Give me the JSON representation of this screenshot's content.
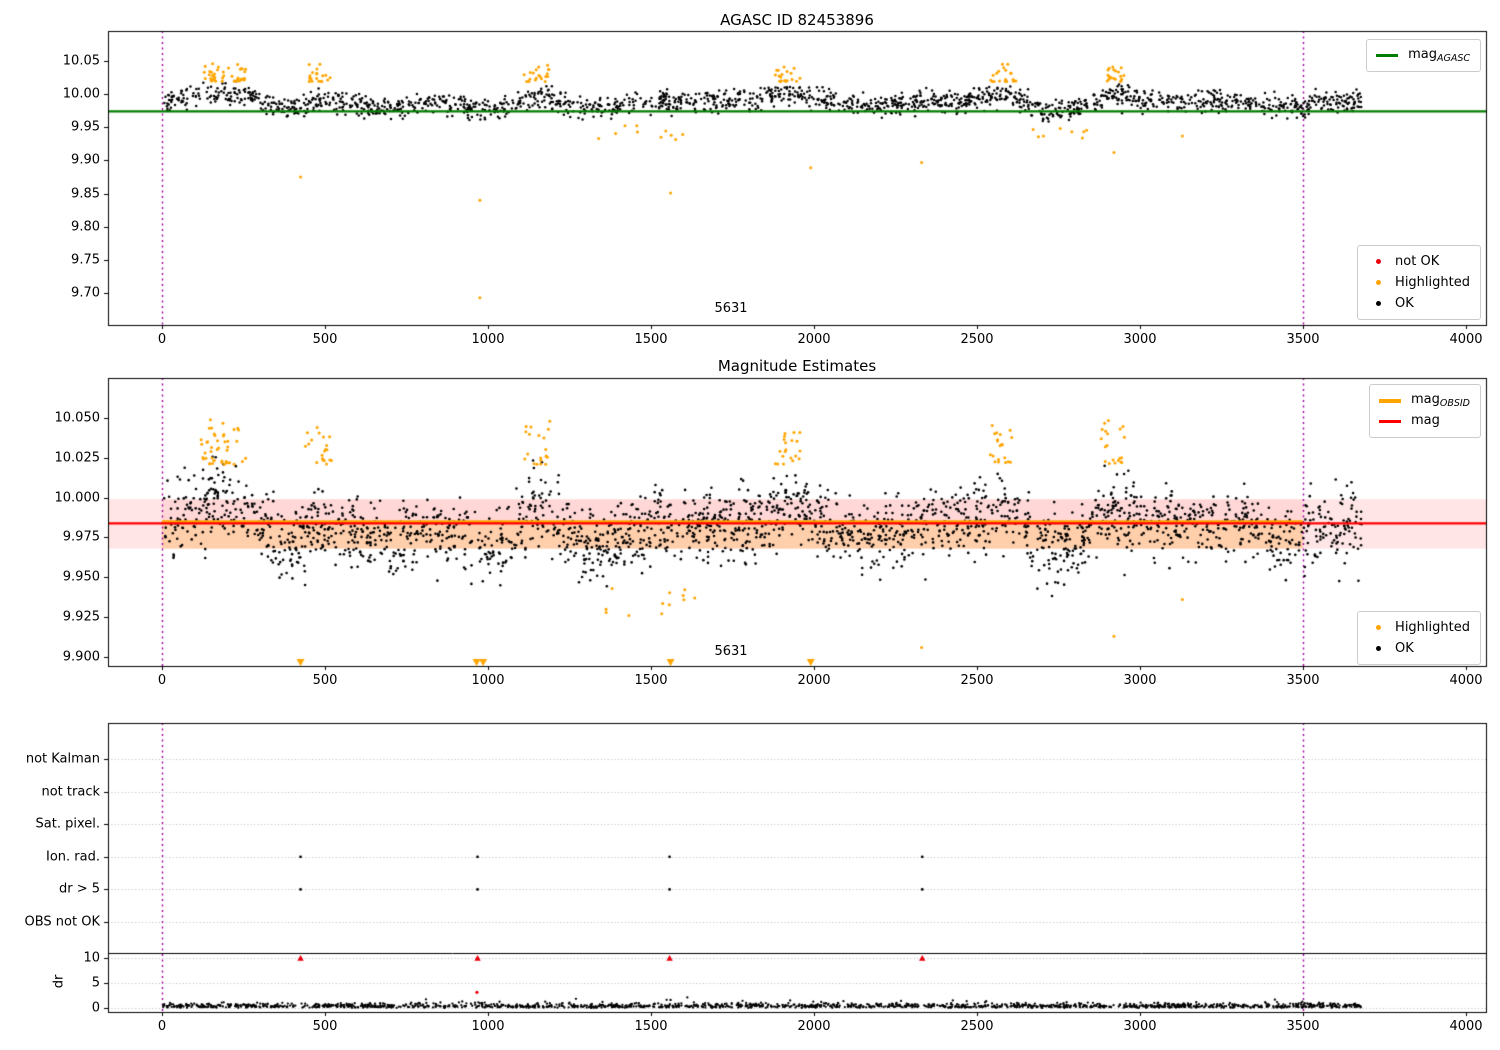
{
  "figure": {
    "background": "#ffffff"
  },
  "chart_data": [
    {
      "type": "scatter",
      "title": "AGASC ID 82453896",
      "xlim": [
        -170,
        4060
      ],
      "ylim": [
        9.652,
        10.092
      ],
      "x_tick_values": [
        0,
        500,
        1000,
        1500,
        2000,
        2500,
        3000,
        3500,
        4000
      ],
      "x_tick_labels": [
        "0",
        "500",
        "1000",
        "1500",
        "2000",
        "2500",
        "3000",
        "3500",
        "4000"
      ],
      "y_tick_values": [
        10.05,
        10.0,
        9.95,
        9.9,
        9.85,
        9.8,
        9.75,
        9.7
      ],
      "y_tick_labels": [
        "10.05",
        "10.00",
        "9.95",
        "9.90",
        "9.85",
        "9.80",
        "9.75",
        "9.70"
      ],
      "grid": false,
      "vlines": {
        "x": [
          0,
          3500
        ],
        "color": "#a100a1",
        "style": "dotted"
      },
      "agasc_line": {
        "label_main": "mag",
        "label_sub": "AGASC",
        "value": 9.974,
        "color": "#007d00"
      },
      "annotation": {
        "text": "5631",
        "x": 1745,
        "y": 9.676
      },
      "legend_points": {
        "position": "lower right",
        "items": [
          {
            "label": "not OK",
            "color": "#e8000b"
          },
          {
            "label": "Highlighted",
            "color": "#ffa500"
          },
          {
            "label": "OK",
            "color": "#000000"
          }
        ]
      },
      "ok_series": {
        "color": "#000000",
        "n": 1750,
        "x_range": [
          5,
          3680
        ],
        "y_mean": 9.9895,
        "y_std": 0.0082
      },
      "events": [
        {
          "c": 190,
          "w": 80,
          "a": 0.014
        },
        {
          "c": 480,
          "w": 50,
          "a": 0.013
        },
        {
          "c": 1150,
          "w": 50,
          "a": 0.013
        },
        {
          "c": 1920,
          "w": 55,
          "a": 0.012
        },
        {
          "c": 2580,
          "w": 50,
          "a": 0.013
        },
        {
          "c": 2915,
          "w": 50,
          "a": 0.012
        }
      ],
      "dips": [
        {
          "c": 430,
          "w": 90,
          "a": -0.016
        },
        {
          "c": 700,
          "w": 60,
          "a": -0.01
        },
        {
          "c": 1010,
          "w": 80,
          "a": -0.014
        },
        {
          "c": 1320,
          "w": 90,
          "a": -0.012
        },
        {
          "c": 2180,
          "w": 70,
          "a": -0.008
        },
        {
          "c": 2750,
          "w": 100,
          "a": -0.014
        },
        {
          "c": 3450,
          "w": 80,
          "a": -0.008
        }
      ],
      "highlighted_clusters": {
        "color": "#ffa500",
        "centers": [
          190,
          480,
          1150,
          1920,
          2580,
          2915
        ],
        "y_range": [
          10.018,
          10.046
        ]
      },
      "highlighted_outliers": [
        [
          425,
          9.875
        ],
        [
          975,
          9.84
        ],
        [
          975,
          9.693
        ],
        [
          1560,
          9.851
        ],
        [
          1990,
          9.889
        ],
        [
          2330,
          9.897
        ],
        [
          2920,
          9.912
        ],
        [
          3130,
          9.937
        ]
      ],
      "highlighted_low_bands": [
        {
          "x_range": [
            1320,
            1620
          ],
          "y_range": [
            9.93,
            9.955
          ],
          "n": 10
        },
        {
          "x_range": [
            2660,
            2850
          ],
          "y_range": [
            9.928,
            9.952
          ],
          "n": 8
        }
      ]
    },
    {
      "type": "scatter",
      "title": "Magnitude Estimates",
      "xlim": [
        -170,
        4060
      ],
      "ylim": [
        9.8925,
        10.075
      ],
      "x_tick_values": [
        0,
        500,
        1000,
        1500,
        2000,
        2500,
        3000,
        3500,
        4000
      ],
      "x_tick_labels": [
        "0",
        "500",
        "1000",
        "1500",
        "2000",
        "2500",
        "3000",
        "3500",
        "4000"
      ],
      "y_tick_values": [
        10.05,
        10.025,
        10.0,
        9.975,
        9.95,
        9.925,
        9.9
      ],
      "y_tick_labels": [
        "10.050",
        "10.025",
        "10.000",
        "9.975",
        "9.950",
        "9.925",
        "9.900"
      ],
      "grid": false,
      "vlines": {
        "x": [
          0,
          3500
        ],
        "color": "#a100a1",
        "style": "dotted"
      },
      "mag_line": {
        "label_main": "mag",
        "label_sub": "",
        "value": 9.9838,
        "color": "#ff0000"
      },
      "obsid_line": {
        "label_main": "mag",
        "label_sub": "OBSID",
        "value": 9.9848,
        "color": "#ffa500",
        "x_range": [
          0,
          3500
        ]
      },
      "bands": [
        {
          "x": "full",
          "y_range": [
            9.968,
            9.999
          ],
          "color": "rgba(255,0,0,0.10)"
        },
        {
          "x": [
            0,
            3500
          ],
          "y_range": [
            9.968,
            9.9845
          ],
          "color": "rgba(255,140,0,0.25)"
        },
        {
          "x": [
            0,
            3500
          ],
          "y_range": [
            9.9845,
            9.999
          ],
          "color": "rgba(255,0,0,0.06)"
        }
      ],
      "legend_lines": {
        "position": "upper right",
        "items": [
          {
            "label_main": "mag",
            "label_sub": "OBSID",
            "color": "#ffa500"
          },
          {
            "label_main": "mag",
            "label_sub": "",
            "color": "#ff0000"
          }
        ]
      },
      "legend_points": {
        "position": "lower right",
        "items": [
          {
            "label": "Highlighted",
            "color": "#ffa500"
          },
          {
            "label": "OK",
            "color": "#000000"
          }
        ]
      },
      "annotation": {
        "text": "5631",
        "x": 1745,
        "y": 9.8995
      },
      "ok_series": {
        "color": "#000000",
        "n": 2300,
        "x_range": [
          5,
          3680
        ],
        "y_mean": 9.9835,
        "y_std": 0.011
      },
      "events": [
        {
          "c": 190,
          "w": 80,
          "a": 0.016
        },
        {
          "c": 480,
          "w": 50,
          "a": 0.015
        },
        {
          "c": 1150,
          "w": 50,
          "a": 0.015
        },
        {
          "c": 1920,
          "w": 55,
          "a": 0.013
        },
        {
          "c": 2580,
          "w": 50,
          "a": 0.015
        },
        {
          "c": 2915,
          "w": 50,
          "a": 0.014
        }
      ],
      "dips": [
        {
          "c": 430,
          "w": 90,
          "a": -0.018
        },
        {
          "c": 700,
          "w": 60,
          "a": -0.011
        },
        {
          "c": 1010,
          "w": 80,
          "a": -0.016
        },
        {
          "c": 1320,
          "w": 90,
          "a": -0.013
        },
        {
          "c": 2180,
          "w": 70,
          "a": -0.009
        },
        {
          "c": 2750,
          "w": 100,
          "a": -0.016
        },
        {
          "c": 3450,
          "w": 80,
          "a": -0.009
        }
      ],
      "highlighted_clusters": {
        "color": "#ffa500",
        "centers": [
          190,
          480,
          1150,
          1920,
          2580,
          2915
        ],
        "y_range": [
          10.02,
          10.048
        ]
      },
      "offscale_low_markers": {
        "x": [
          425,
          965,
          985,
          1560,
          1990
        ],
        "y": 9.8965,
        "symbol": "triangle-down",
        "color": "#ffa500"
      },
      "highlighted_outliers": [
        [
          2330,
          9.906
        ],
        [
          2920,
          9.913
        ],
        [
          3130,
          9.936
        ]
      ],
      "highlighted_low_bands": [
        {
          "x_range": [
            1350,
            1650
          ],
          "y_range": [
            9.925,
            9.945
          ],
          "n": 12
        }
      ]
    },
    {
      "type": "scatter",
      "title": "",
      "ylabel": "dr",
      "xlim": [
        -170,
        4060
      ],
      "x_tick_values": [
        0,
        500,
        1000,
        1500,
        2000,
        2500,
        3000,
        3500,
        4000
      ],
      "x_tick_labels": [
        "0",
        "500",
        "1000",
        "1500",
        "2000",
        "2500",
        "3000",
        "3500",
        "4000"
      ],
      "categories": [
        "not Kalman",
        "not track",
        "Sat. pixel.",
        "Ion. rad.",
        "dr > 5",
        "OBS not OK"
      ],
      "dr_tick_values": [
        10,
        5,
        0
      ],
      "dr_tick_labels": [
        "10",
        "5",
        "0"
      ],
      "grid": "dotted-horizontal",
      "separator_line": {
        "dr": 10.9,
        "color": "#000000"
      },
      "vlines": {
        "x": [
          0,
          3500
        ],
        "color": "#a100a1",
        "style": "dotted"
      },
      "flags": {
        "x": [
          425,
          968,
          1557,
          2332
        ],
        "rows": [
          "Ion. rad.",
          "dr > 5"
        ],
        "color": "#000000"
      },
      "dr_clipped": {
        "x": [
          425,
          968,
          1557,
          2332
        ],
        "dr": 10.2,
        "color": "#e8000b",
        "symbol": "triangle-up"
      },
      "red_points": [
        [
          966,
          3.1
        ]
      ],
      "black_points": [
        [
          982,
          1.0
        ],
        [
          1560,
          1.6
        ]
      ],
      "dr_series": {
        "color": "#000000",
        "n": 1600,
        "x_range": [
          3,
          3680
        ],
        "dr_typical": 0.35,
        "dr_max": 2.4
      }
    }
  ]
}
